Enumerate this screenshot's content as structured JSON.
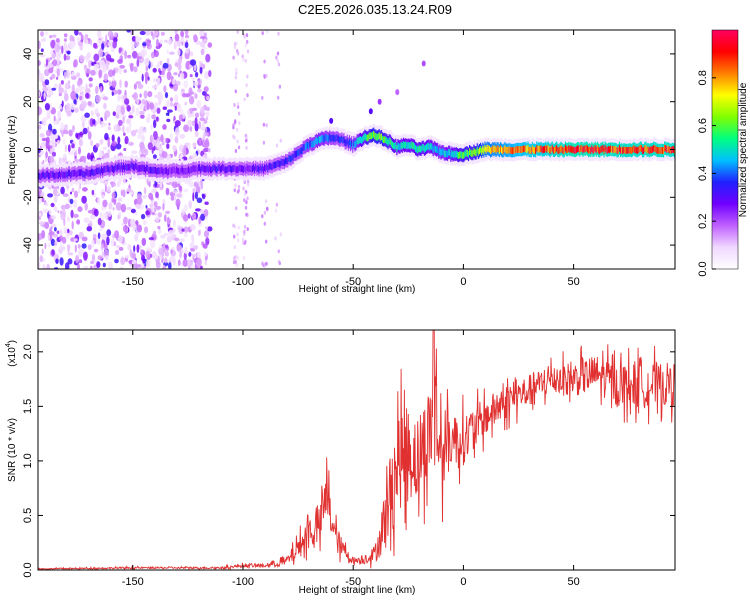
{
  "title": "C2E5.2026.035.13.24.R09",
  "chart_data": [
    {
      "type": "heatmap",
      "name": "spectrogram",
      "xlabel": "Height of straight line (km)",
      "ylabel": "Frequency (Hz)",
      "xlim": [
        -193,
        96
      ],
      "ylim": [
        -50,
        50
      ],
      "xticks": [
        -150,
        -100,
        -50,
        0,
        50
      ],
      "yticks": [
        -40,
        -20,
        0,
        20,
        40
      ],
      "colorbar": {
        "label": "Normalized spectral amplitude",
        "range": [
          0,
          1
        ],
        "ticks": [
          "0.0",
          "0.2",
          "0.4",
          "0.6",
          "0.8"
        ],
        "stops": [
          "#ffffff",
          "#f0d8ff",
          "#c060ff",
          "#7000ff",
          "#2020ff",
          "#00c0ff",
          "#00ff80",
          "#80ff00",
          "#ffff00",
          "#ff8000",
          "#ff0000",
          "#ff0060"
        ]
      },
      "ridge": {
        "x": [
          -193,
          -170,
          -160,
          -150,
          -140,
          -130,
          -120,
          -110,
          -100,
          -90,
          -80,
          -70,
          -65,
          -60,
          -55,
          -50,
          -45,
          -40,
          -35,
          -30,
          -25,
          -20,
          -15,
          -10,
          -5,
          0,
          5,
          10,
          20,
          30,
          40,
          50,
          60,
          70,
          80,
          90,
          96
        ],
        "y": [
          -11,
          -10,
          -8,
          -7,
          -9,
          -9,
          -8,
          -8,
          -8,
          -8,
          -5,
          2,
          4,
          5,
          4,
          2,
          5,
          6,
          4,
          1,
          2,
          0,
          1,
          -1,
          -2,
          -2,
          -1,
          0,
          0,
          0,
          0,
          0,
          0,
          0,
          0,
          0,
          0
        ],
        "amplitude": [
          0.3,
          0.3,
          0.3,
          0.3,
          0.3,
          0.25,
          0.28,
          0.32,
          0.28,
          0.3,
          0.35,
          0.4,
          0.45,
          0.4,
          0.35,
          0.4,
          0.55,
          0.65,
          0.6,
          0.5,
          0.5,
          0.55,
          0.5,
          0.45,
          0.5,
          0.6,
          0.6,
          0.75,
          0.8,
          0.85,
          0.88,
          0.92,
          0.92,
          0.9,
          0.9,
          0.9,
          0.9
        ]
      }
    },
    {
      "type": "line",
      "name": "snr",
      "xlabel": "Height of straight line (km)",
      "ylabel": "SNR (10 * v/v)",
      "y_multiplier": "(x10",
      "y_multiplier_exp": "4",
      "y_multiplier_close": ")",
      "xlim": [
        -193,
        96
      ],
      "ylim": [
        0,
        2.2
      ],
      "xticks": [
        -150,
        -100,
        -50,
        0,
        50
      ],
      "yticks": [
        "0.0",
        "0.5",
        "1.0",
        "1.5",
        "2.0"
      ],
      "color": "#e03030",
      "envelope": {
        "x": [
          -193,
          -150,
          -110,
          -100,
          -90,
          -80,
          -75,
          -70,
          -65,
          -62,
          -58,
          -55,
          -50,
          -45,
          -40,
          -35,
          -30,
          -25,
          -20,
          -15,
          -13,
          -10,
          -5,
          0,
          10,
          20,
          30,
          40,
          50,
          60,
          70,
          80,
          90,
          96
        ],
        "mean": [
          0.01,
          0.02,
          0.02,
          0.04,
          0.04,
          0.08,
          0.2,
          0.35,
          0.4,
          0.7,
          0.3,
          0.2,
          0.08,
          0.1,
          0.15,
          0.5,
          1.0,
          1.1,
          1.0,
          1.3,
          1.4,
          1.1,
          1.2,
          1.2,
          1.4,
          1.55,
          1.65,
          1.75,
          1.75,
          1.8,
          1.7,
          1.7,
          1.7,
          1.7
        ],
        "noise": [
          0.005,
          0.01,
          0.01,
          0.02,
          0.02,
          0.06,
          0.12,
          0.2,
          0.22,
          0.3,
          0.18,
          0.1,
          0.04,
          0.06,
          0.1,
          0.4,
          0.6,
          0.55,
          0.5,
          0.55,
          0.8,
          0.5,
          0.3,
          0.3,
          0.22,
          0.2,
          0.18,
          0.18,
          0.2,
          0.22,
          0.25,
          0.28,
          0.25,
          0.25
        ]
      }
    }
  ]
}
